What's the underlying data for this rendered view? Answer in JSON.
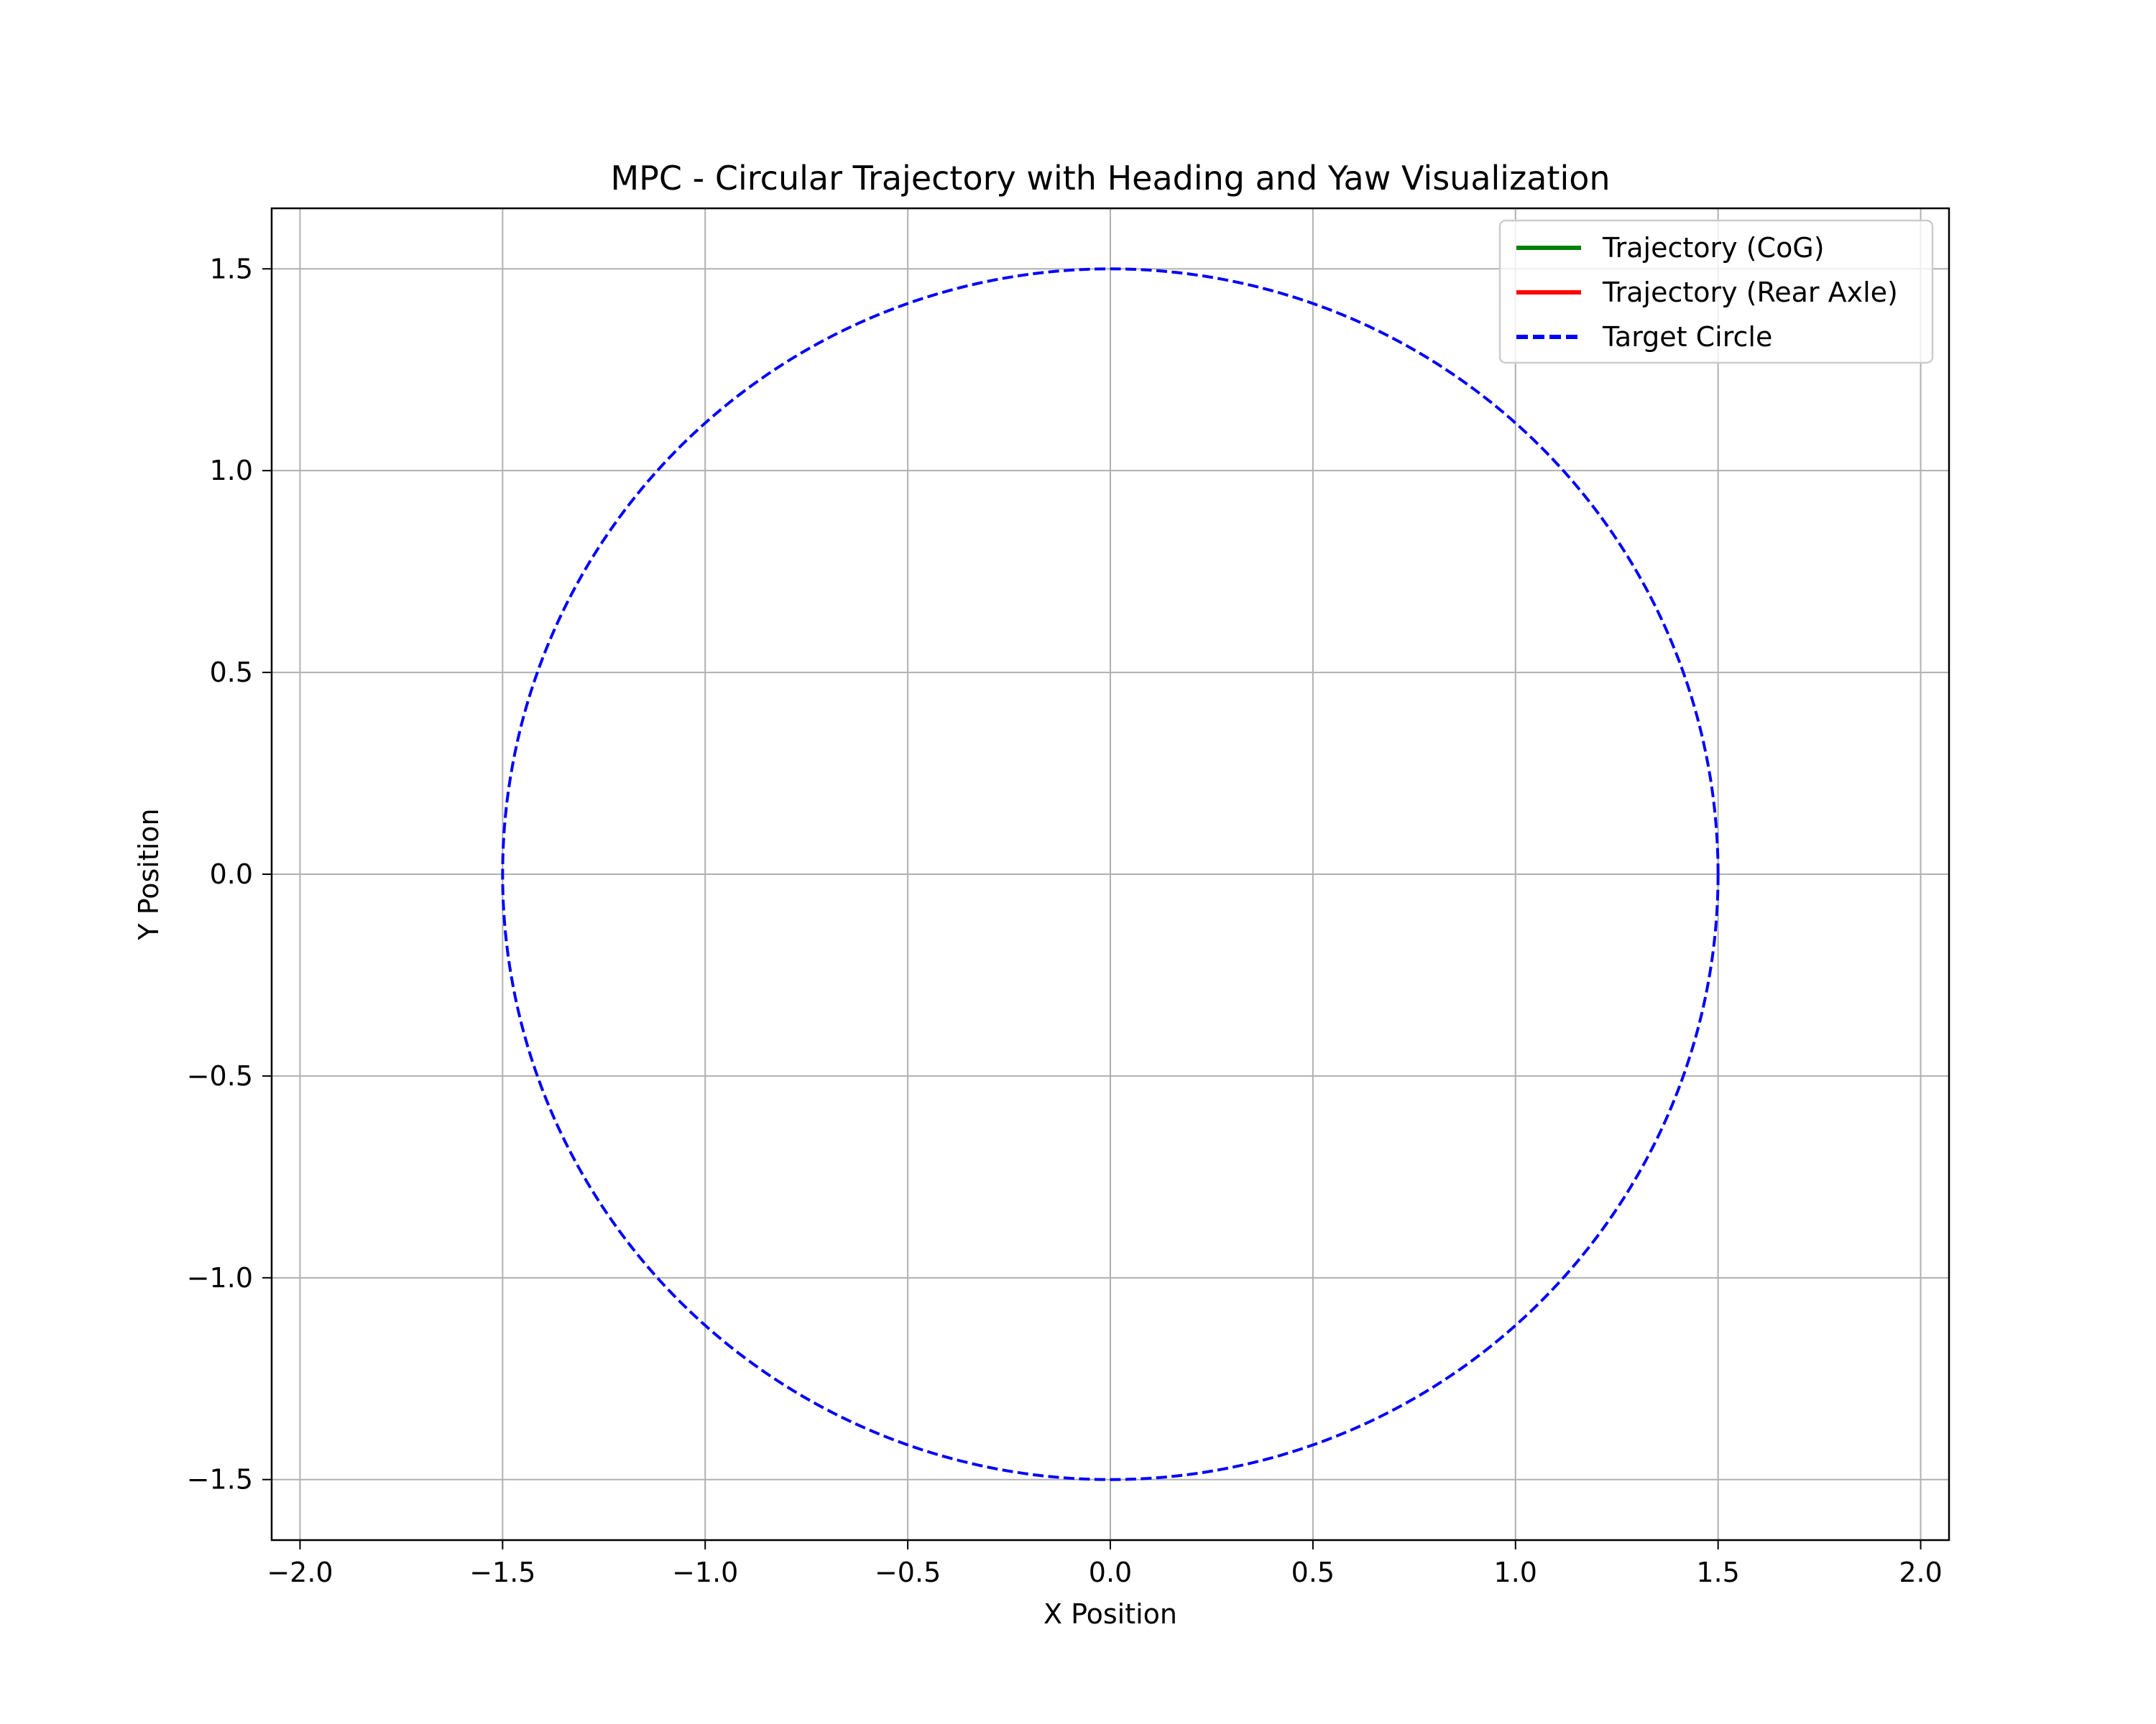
{
  "chart_data": {
    "type": "line",
    "title": "MPC - Circular Trajectory with Heading and Yaw Visualization",
    "xlabel": "X Position",
    "ylabel": "Y Position",
    "xlim": [
      -2.07,
      2.07
    ],
    "ylim": [
      -1.65,
      1.65
    ],
    "grid": true,
    "legend_position": "top-right",
    "x_ticks": [
      -2.0,
      -1.5,
      -1.0,
      -0.5,
      0.0,
      0.5,
      1.0,
      1.5,
      2.0
    ],
    "y_ticks": [
      -1.5,
      -1.0,
      -0.5,
      0.0,
      0.5,
      1.0,
      1.5
    ],
    "x_tick_labels": [
      "−2.0",
      "−1.5",
      "−1.0",
      "−0.5",
      "0.0",
      "0.5",
      "1.0",
      "1.5",
      "2.0"
    ],
    "y_tick_labels": [
      "−1.5",
      "−1.0",
      "−0.5",
      "0.0",
      "0.5",
      "1.0",
      "1.5"
    ],
    "series": [
      {
        "name": "Trajectory (CoG)",
        "color": "#008000",
        "style": "solid",
        "points": []
      },
      {
        "name": "Trajectory (Rear Axle)",
        "color": "#ff0000",
        "style": "solid",
        "points": []
      },
      {
        "name": "Target Circle",
        "color": "#0000ff",
        "style": "dashed",
        "shape": "circle",
        "center": [
          0,
          0
        ],
        "radius": 1.5
      }
    ]
  }
}
